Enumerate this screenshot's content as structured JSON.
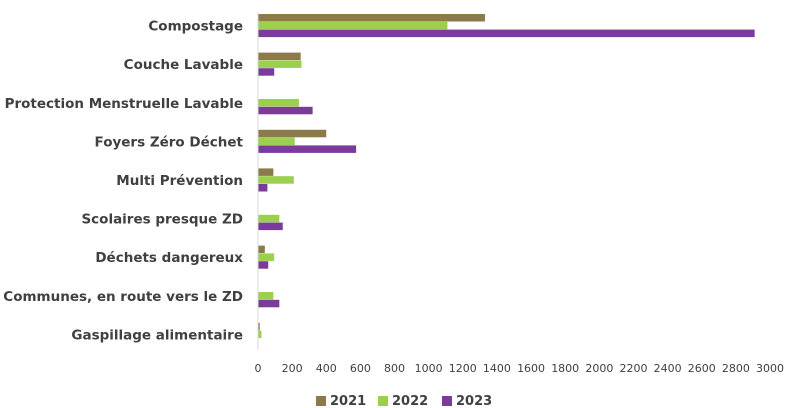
{
  "chart_data": {
    "type": "bar",
    "orientation": "horizontal",
    "categories": [
      "Compostage",
      "Couche Lavable",
      "Protection Menstruelle Lavable",
      "Foyers Zéro Déchet",
      "Multi Prévention",
      "Scolaires presque ZD",
      "Déchets dangereux",
      "Communes, en route vers le ZD",
      "Gaspillage alimentaire"
    ],
    "series": [
      {
        "name": "2021",
        "color": "#8c7a4b",
        "values": [
          1330,
          250,
          0,
          400,
          90,
          0,
          40,
          0,
          10
        ]
      },
      {
        "name": "2022",
        "color": "#9bd04d",
        "values": [
          1110,
          255,
          240,
          215,
          210,
          125,
          95,
          90,
          20
        ]
      },
      {
        "name": "2023",
        "color": "#7a3b9a",
        "values": [
          2910,
          95,
          320,
          575,
          55,
          145,
          60,
          125,
          0
        ]
      }
    ],
    "xlim": [
      0,
      3000
    ],
    "x_ticks": [
      "0",
      "200",
      "400",
      "600",
      "800",
      "1000",
      "1200",
      "1400",
      "1600",
      "1800",
      "2000",
      "2200",
      "2400",
      "2600",
      "2800",
      "3000"
    ],
    "title": "",
    "xlabel": "",
    "ylabel": "",
    "grid": false,
    "legend_position": "bottom"
  }
}
